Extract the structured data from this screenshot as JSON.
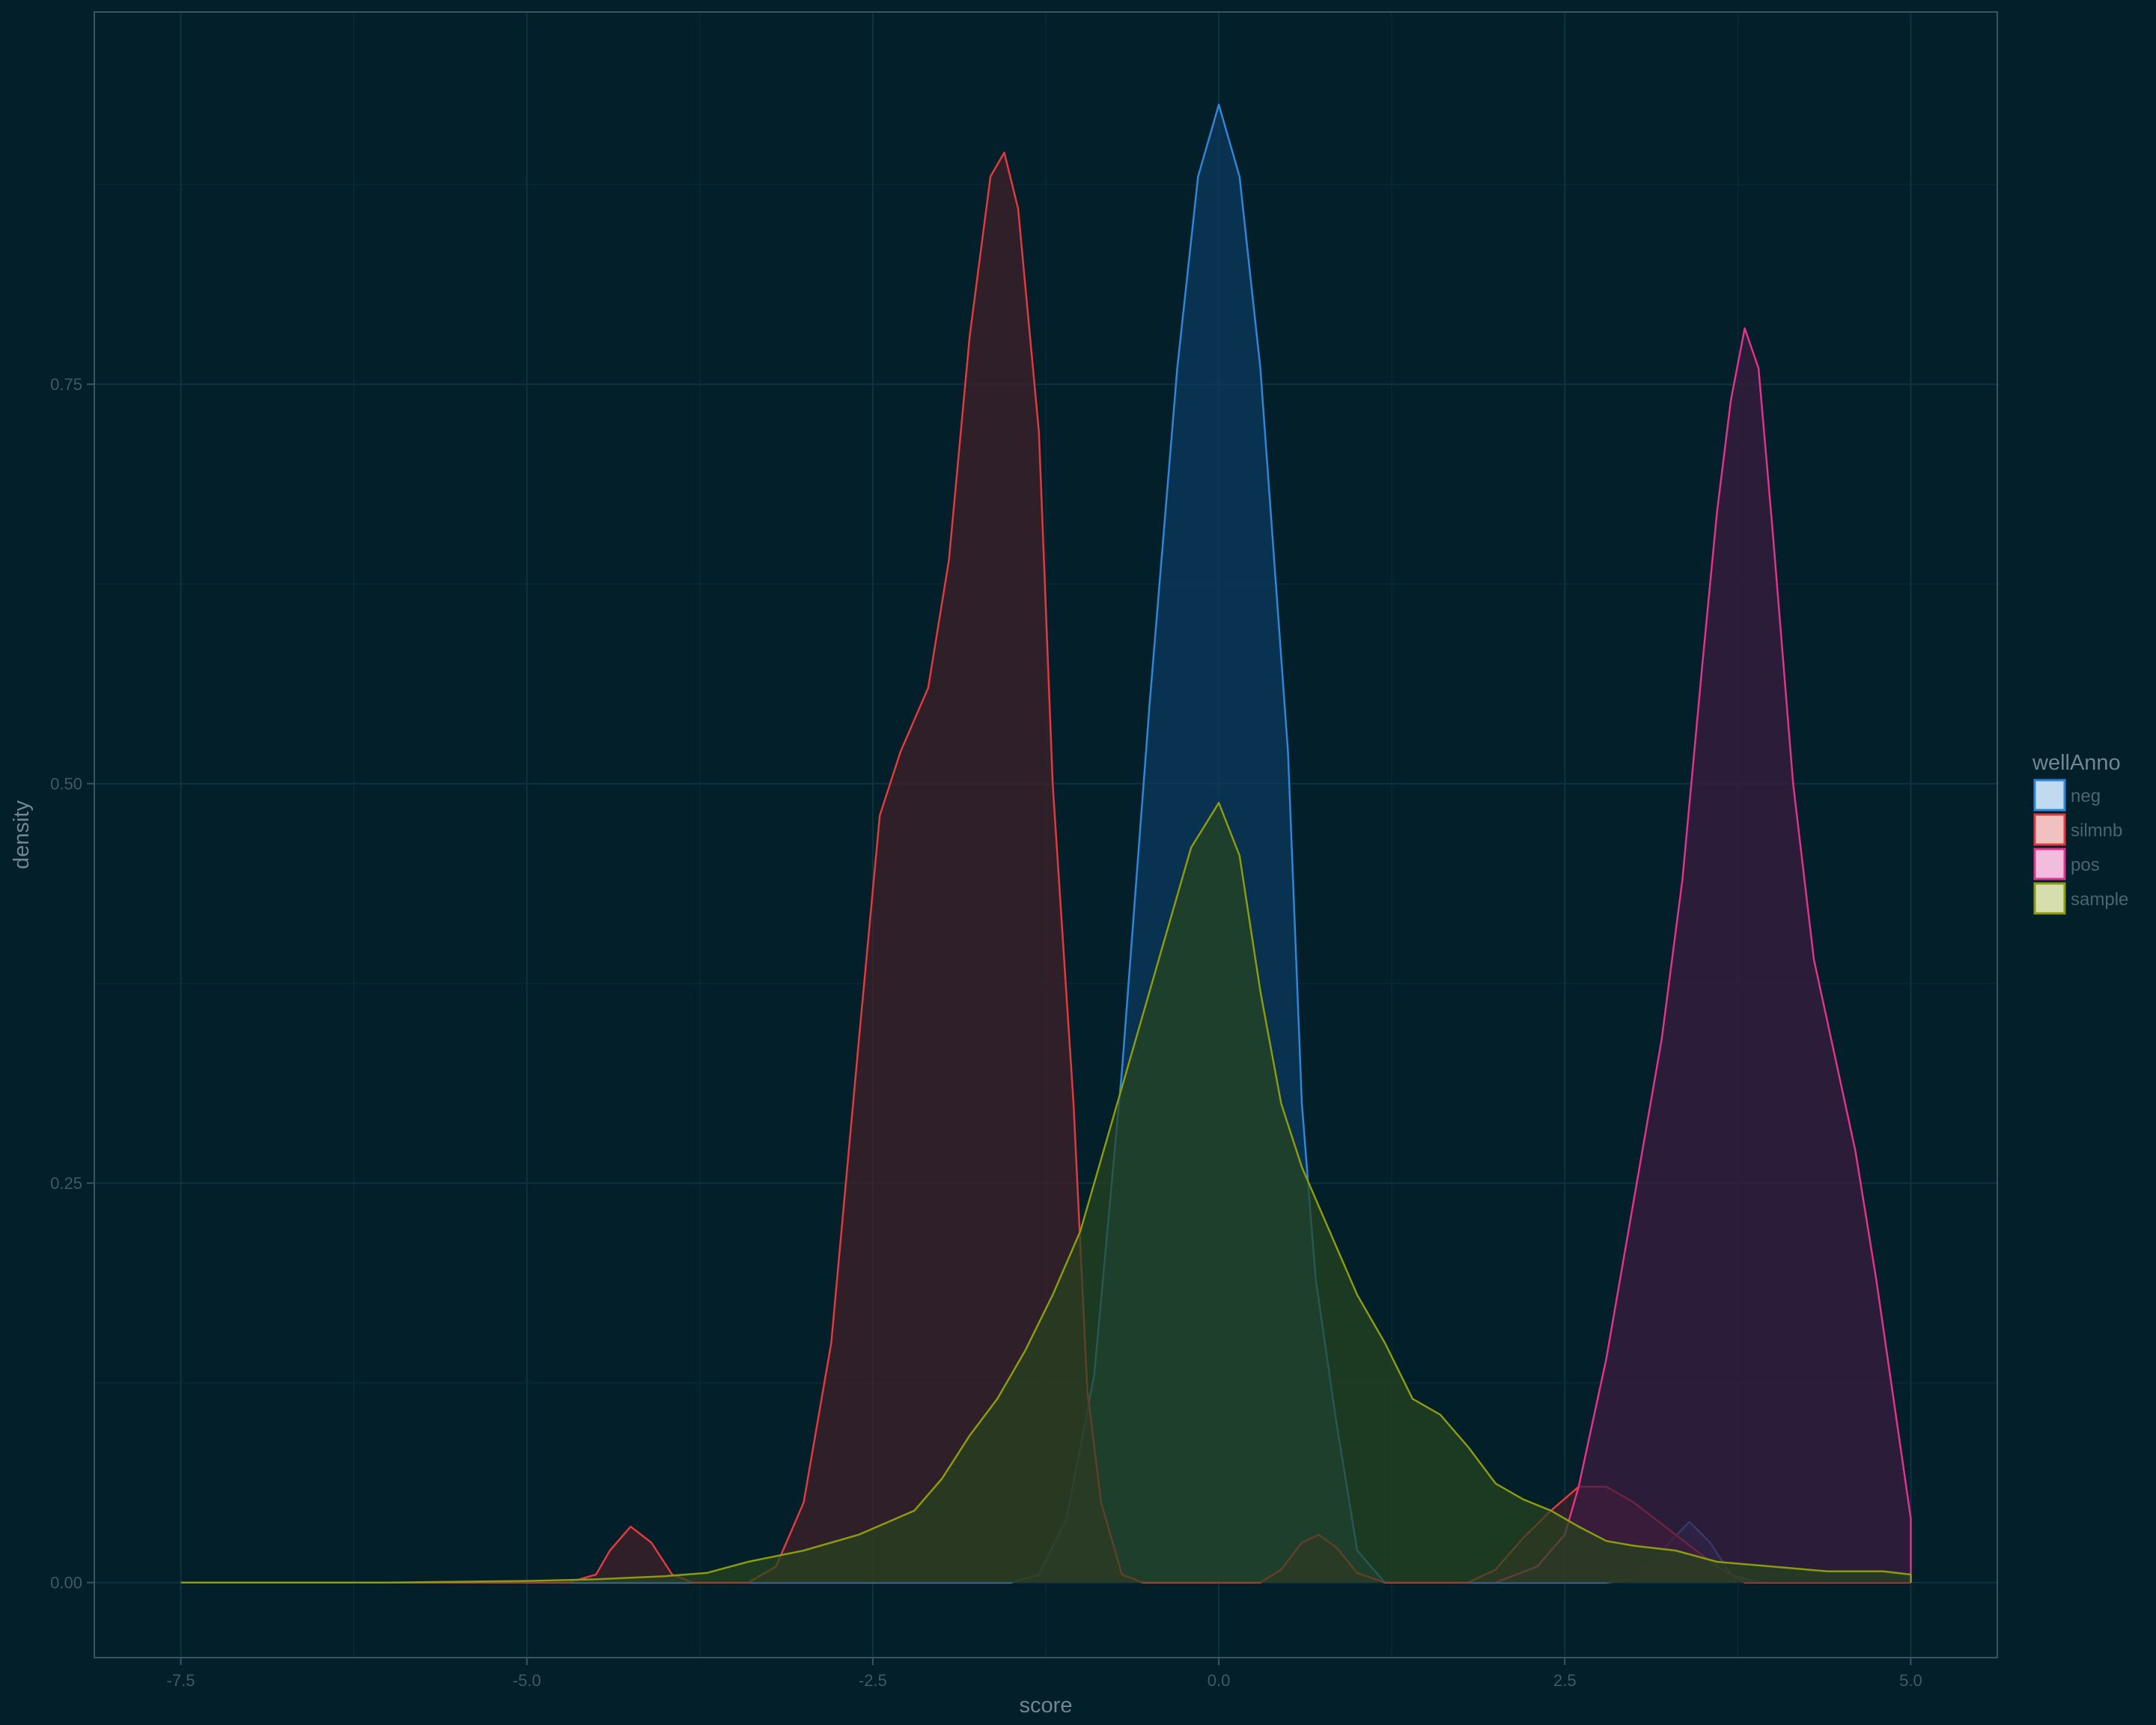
{
  "chart_data": {
    "type": "area",
    "title": "",
    "xlabel": "score",
    "ylabel": "density",
    "xlim": [
      -8.125,
      5.625
    ],
    "ylim": [
      -0.047,
      0.983
    ],
    "x_ticks": [
      -7.5,
      -5.0,
      -2.5,
      0.0,
      2.5,
      5.0
    ],
    "x_tick_labels": [
      "-7.5",
      "-5.0",
      "-2.5",
      "0.0",
      "2.5",
      "5.0"
    ],
    "y_ticks": [
      0.0,
      0.25,
      0.5,
      0.75
    ],
    "y_tick_labels": [
      "0.00",
      "0.25",
      "0.50",
      "0.75"
    ],
    "grid": true,
    "legend": {
      "title": "wellAnno",
      "position": "right"
    },
    "series": [
      {
        "name": "neg",
        "color": "#2e86d6",
        "fill": "#0b3a5e",
        "points": [
          [
            -7.5,
            0
          ],
          [
            -1.5,
            0
          ],
          [
            -1.3,
            0.005
          ],
          [
            -1.1,
            0.04
          ],
          [
            -0.9,
            0.13
          ],
          [
            -0.7,
            0.32
          ],
          [
            -0.5,
            0.55
          ],
          [
            -0.3,
            0.76
          ],
          [
            -0.15,
            0.88
          ],
          [
            0,
            0.925
          ],
          [
            0.15,
            0.88
          ],
          [
            0.3,
            0.76
          ],
          [
            0.5,
            0.52
          ],
          [
            0.6,
            0.3
          ],
          [
            0.7,
            0.19
          ],
          [
            0.85,
            0.1
          ],
          [
            1.0,
            0.02
          ],
          [
            1.2,
            0
          ],
          [
            2.8,
            0
          ],
          [
            3.0,
            0.002
          ],
          [
            3.2,
            0.02
          ],
          [
            3.4,
            0.038
          ],
          [
            3.55,
            0.025
          ],
          [
            3.7,
            0.005
          ],
          [
            3.9,
            0
          ],
          [
            5.0,
            0
          ]
        ]
      },
      {
        "name": "silmnb",
        "color": "#e03a3e",
        "fill": "#41202a",
        "points": [
          [
            -7.5,
            0
          ],
          [
            -4.7,
            0
          ],
          [
            -4.5,
            0.005
          ],
          [
            -4.4,
            0.02
          ],
          [
            -4.25,
            0.035
          ],
          [
            -4.1,
            0.025
          ],
          [
            -3.95,
            0.005
          ],
          [
            -3.8,
            0
          ],
          [
            -3.4,
            0
          ],
          [
            -3.2,
            0.01
          ],
          [
            -3.0,
            0.05
          ],
          [
            -2.8,
            0.15
          ],
          [
            -2.6,
            0.34
          ],
          [
            -2.45,
            0.48
          ],
          [
            -2.3,
            0.52
          ],
          [
            -2.1,
            0.56
          ],
          [
            -1.95,
            0.64
          ],
          [
            -1.8,
            0.78
          ],
          [
            -1.65,
            0.88
          ],
          [
            -1.55,
            0.895
          ],
          [
            -1.45,
            0.86
          ],
          [
            -1.3,
            0.72
          ],
          [
            -1.2,
            0.5
          ],
          [
            -1.05,
            0.3
          ],
          [
            -0.95,
            0.12
          ],
          [
            -0.85,
            0.05
          ],
          [
            -0.7,
            0.005
          ],
          [
            -0.55,
            0
          ],
          [
            0.3,
            0
          ],
          [
            0.45,
            0.008
          ],
          [
            0.6,
            0.025
          ],
          [
            0.72,
            0.03
          ],
          [
            0.85,
            0.022
          ],
          [
            1.0,
            0.006
          ],
          [
            1.2,
            0
          ],
          [
            1.8,
            0
          ],
          [
            2.0,
            0.008
          ],
          [
            2.2,
            0.028
          ],
          [
            2.4,
            0.045
          ],
          [
            2.6,
            0.06
          ],
          [
            2.8,
            0.06
          ],
          [
            3.0,
            0.05
          ],
          [
            3.3,
            0.03
          ],
          [
            3.6,
            0.01
          ],
          [
            3.8,
            0
          ],
          [
            5.0,
            0
          ]
        ]
      },
      {
        "name": "pos",
        "color": "#e0338c",
        "fill": "#3c1c40",
        "points": [
          [
            2.0,
            0
          ],
          [
            2.3,
            0.01
          ],
          [
            2.5,
            0.03
          ],
          [
            2.6,
            0.06
          ],
          [
            2.8,
            0.14
          ],
          [
            3.0,
            0.24
          ],
          [
            3.2,
            0.34
          ],
          [
            3.35,
            0.44
          ],
          [
            3.5,
            0.58
          ],
          [
            3.6,
            0.67
          ],
          [
            3.7,
            0.74
          ],
          [
            3.8,
            0.785
          ],
          [
            3.9,
            0.76
          ],
          [
            4.0,
            0.66
          ],
          [
            4.15,
            0.5
          ],
          [
            4.3,
            0.39
          ],
          [
            4.45,
            0.33
          ],
          [
            4.6,
            0.27
          ],
          [
            4.75,
            0.19
          ],
          [
            4.9,
            0.1
          ],
          [
            5.0,
            0.04
          ],
          [
            5.0,
            0
          ]
        ]
      },
      {
        "name": "sample",
        "color": "#8c9a12",
        "fill": "#27441f",
        "points": [
          [
            -7.5,
            0
          ],
          [
            -6.0,
            0
          ],
          [
            -5.0,
            0.001
          ],
          [
            -4.5,
            0.002
          ],
          [
            -4.0,
            0.004
          ],
          [
            -3.7,
            0.006
          ],
          [
            -3.4,
            0.013
          ],
          [
            -3.0,
            0.02
          ],
          [
            -2.6,
            0.03
          ],
          [
            -2.2,
            0.045
          ],
          [
            -2.0,
            0.065
          ],
          [
            -1.8,
            0.092
          ],
          [
            -1.6,
            0.115
          ],
          [
            -1.4,
            0.145
          ],
          [
            -1.2,
            0.18
          ],
          [
            -1.0,
            0.22
          ],
          [
            -0.8,
            0.28
          ],
          [
            -0.6,
            0.34
          ],
          [
            -0.4,
            0.4
          ],
          [
            -0.2,
            0.46
          ],
          [
            0,
            0.488
          ],
          [
            0.15,
            0.455
          ],
          [
            0.3,
            0.37
          ],
          [
            0.45,
            0.3
          ],
          [
            0.6,
            0.26
          ],
          [
            0.8,
            0.22
          ],
          [
            1.0,
            0.18
          ],
          [
            1.2,
            0.15
          ],
          [
            1.4,
            0.115
          ],
          [
            1.6,
            0.105
          ],
          [
            1.8,
            0.085
          ],
          [
            2.0,
            0.062
          ],
          [
            2.2,
            0.052
          ],
          [
            2.4,
            0.045
          ],
          [
            2.6,
            0.035
          ],
          [
            2.8,
            0.026
          ],
          [
            3.0,
            0.023
          ],
          [
            3.3,
            0.02
          ],
          [
            3.6,
            0.013
          ],
          [
            4.0,
            0.01
          ],
          [
            4.4,
            0.007
          ],
          [
            4.8,
            0.007
          ],
          [
            5.0,
            0.005
          ],
          [
            5.0,
            0
          ]
        ]
      }
    ]
  }
}
